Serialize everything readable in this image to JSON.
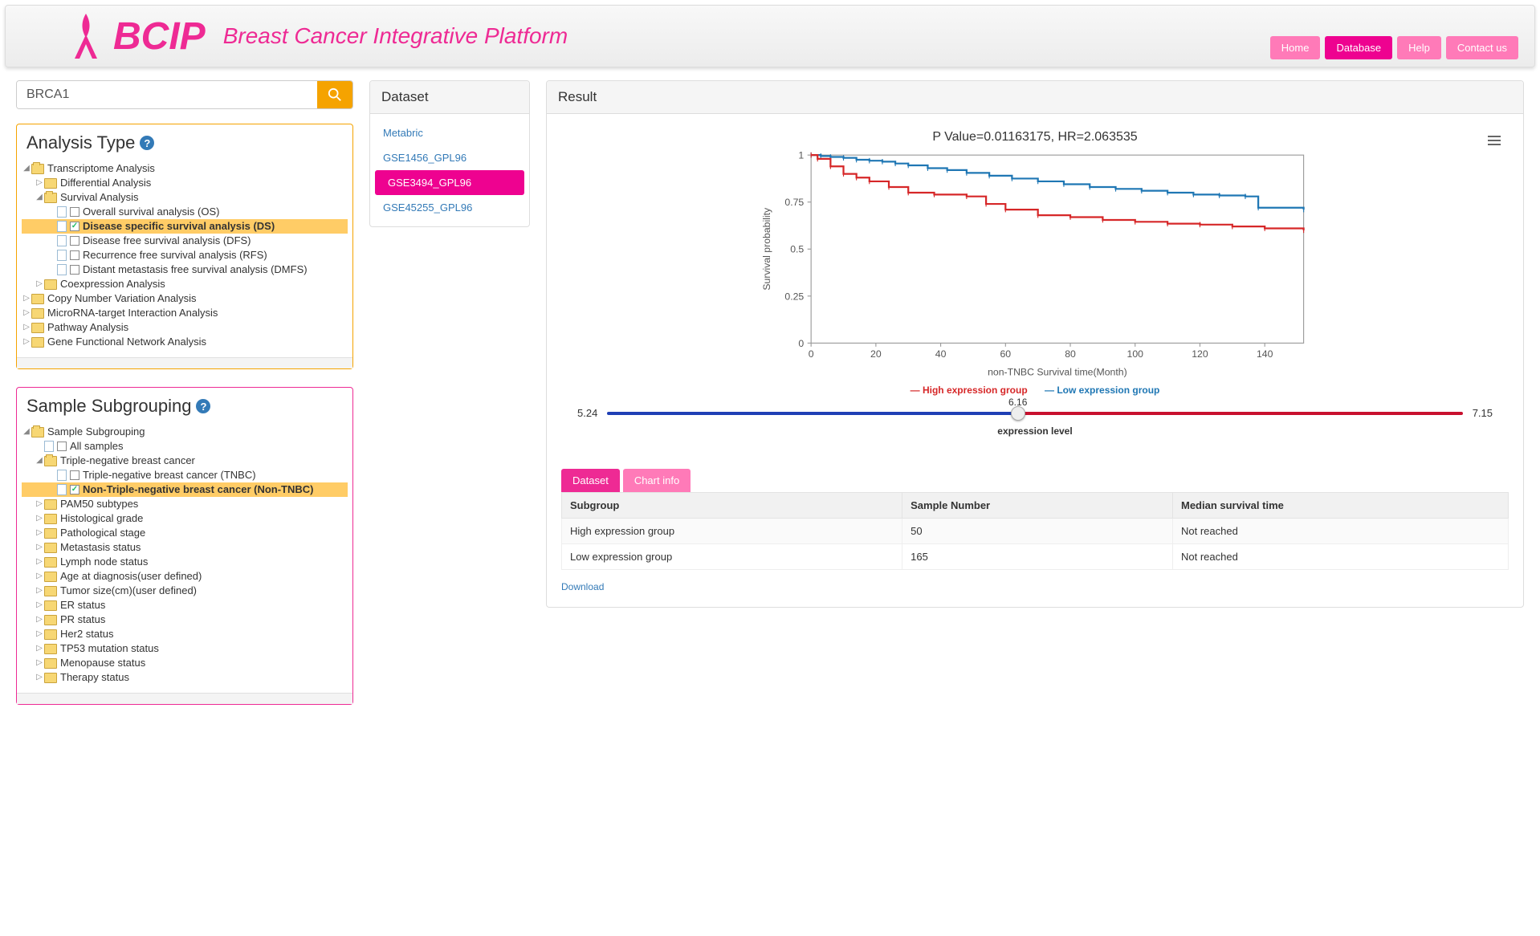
{
  "header": {
    "title": "BCIP",
    "subtitle": "Breast Cancer Integrative Platform",
    "nav": [
      "Home",
      "Database",
      "Help",
      "Contact us"
    ],
    "nav_active": 1
  },
  "search": {
    "value": "BRCA1"
  },
  "analysis_panel": {
    "title": "Analysis Type",
    "tree": [
      "Transcriptome Analysis",
      "Differential Analysis",
      "Survival Analysis",
      "Overall survival analysis (OS)",
      "Disease specific survival analysis (DS)",
      "Disease free survival analysis (DFS)",
      "Recurrence free survival analysis (RFS)",
      "Distant metastasis free survival analysis (DMFS)",
      "Coexpression Analysis",
      "Copy Number Variation Analysis",
      "MicroRNA-target Interaction Analysis",
      "Pathway Analysis",
      "Gene Functional Network Analysis"
    ]
  },
  "subgroup_panel": {
    "title": "Sample Subgrouping",
    "tree": [
      "Sample Subgrouping",
      "All samples",
      "Triple-negative breast cancer",
      "Triple-negative breast cancer (TNBC)",
      "Non-Triple-negative breast cancer (Non-TNBC)",
      "PAM50 subtypes",
      "Histological grade",
      "Pathological stage",
      "Metastasis status",
      "Lymph node status",
      "Age at diagnosis(user defined)",
      "Tumor size(cm)(user defined)",
      "ER status",
      "PR status",
      "Her2 status",
      "TP53 mutation status",
      "Menopause status",
      "Therapy status"
    ]
  },
  "dataset_panel": {
    "title": "Dataset",
    "items": [
      "Metabric",
      "GSE1456_GPL96",
      "GSE3494_GPL96",
      "GSE45255_GPL96"
    ],
    "active": 2
  },
  "result": {
    "title": "Result",
    "chart": {
      "title": "P Value=0.01163175, HR=2.063535",
      "ylabel": "Survival probability",
      "xlabel": "non-TNBC Survival time(Month)",
      "y_ticks": [
        "1",
        "0.75",
        "0.5",
        "0.25",
        "0"
      ],
      "x_ticks": [
        "0",
        "20",
        "40",
        "60",
        "80",
        "100",
        "120",
        "140"
      ],
      "x_max": 152,
      "legend_high": "High expression group",
      "legend_low": "Low expression group",
      "colors": {
        "high": "#d62728",
        "low": "#1f77b4",
        "grid": "#e0e0e0",
        "axis": "#666"
      },
      "series": {
        "low": [
          [
            0,
            1.0
          ],
          [
            3,
            0.995
          ],
          [
            6,
            0.99
          ],
          [
            10,
            0.985
          ],
          [
            14,
            0.975
          ],
          [
            18,
            0.97
          ],
          [
            22,
            0.965
          ],
          [
            26,
            0.955
          ],
          [
            30,
            0.945
          ],
          [
            36,
            0.93
          ],
          [
            42,
            0.92
          ],
          [
            48,
            0.905
          ],
          [
            55,
            0.89
          ],
          [
            62,
            0.875
          ],
          [
            70,
            0.86
          ],
          [
            78,
            0.845
          ],
          [
            86,
            0.83
          ],
          [
            94,
            0.82
          ],
          [
            102,
            0.81
          ],
          [
            110,
            0.8
          ],
          [
            118,
            0.79
          ],
          [
            126,
            0.785
          ],
          [
            134,
            0.78
          ],
          [
            138,
            0.72
          ],
          [
            152,
            0.71
          ]
        ],
        "high": [
          [
            0,
            1.0
          ],
          [
            2,
            0.98
          ],
          [
            6,
            0.94
          ],
          [
            10,
            0.9
          ],
          [
            14,
            0.88
          ],
          [
            18,
            0.86
          ],
          [
            24,
            0.83
          ],
          [
            30,
            0.8
          ],
          [
            38,
            0.79
          ],
          [
            48,
            0.78
          ],
          [
            54,
            0.74
          ],
          [
            60,
            0.71
          ],
          [
            70,
            0.68
          ],
          [
            80,
            0.67
          ],
          [
            90,
            0.655
          ],
          [
            100,
            0.645
          ],
          [
            110,
            0.635
          ],
          [
            120,
            0.63
          ],
          [
            130,
            0.62
          ],
          [
            140,
            0.61
          ],
          [
            152,
            0.6
          ]
        ]
      }
    },
    "slider": {
      "min": "5.24",
      "mid": "6.16",
      "max": "7.15",
      "split_pct": 48,
      "label": "expression level"
    },
    "tabs": [
      "Dataset",
      "Chart info"
    ],
    "tab_active": 0,
    "table": {
      "columns": [
        "Subgroup",
        "Sample Number",
        "Median survival time"
      ],
      "rows": [
        [
          "High expression group",
          "50",
          "Not reached"
        ],
        [
          "Low expression group",
          "165",
          "Not reached"
        ]
      ]
    },
    "download": "Download"
  }
}
